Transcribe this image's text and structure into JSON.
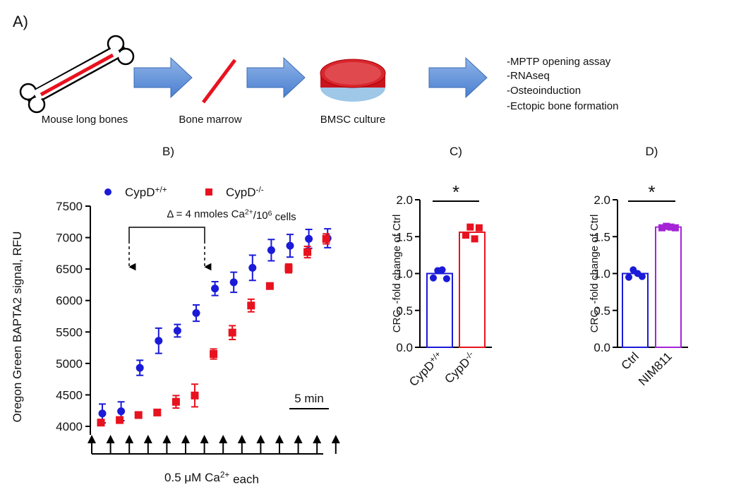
{
  "panel_a": {
    "label": "A)",
    "steps": [
      "Mouse long bones",
      "Bone marrow",
      "BMSC culture"
    ],
    "outcomes": [
      "-MPTP opening assay",
      "-RNAseq",
      "-Osteoinduction",
      "-Ectopic bone formation"
    ]
  },
  "chart_data": [
    {
      "type": "scatter",
      "title": "B)",
      "y_label": "Oregon Green BAPTA2 signal, RFU",
      "categories": [
        null,
        null,
        null,
        null,
        null,
        null,
        null,
        null,
        null,
        null,
        null,
        null,
        null
      ],
      "series": [
        {
          "name": [
            "CypD",
            {
              "sup": "+/+"
            }
          ],
          "color": "#1a1ad8",
          "marker": "circle",
          "values": [
            4205,
            4240,
            4930,
            5360,
            5520,
            5800,
            6190,
            6290,
            6520,
            6800,
            6870,
            6980,
            6990
          ],
          "errors": [
            150,
            150,
            120,
            200,
            100,
            130,
            110,
            160,
            200,
            170,
            180,
            150,
            150
          ]
        },
        {
          "name": [
            "CypD",
            {
              "sup": "-/-"
            }
          ],
          "color": "#e8121f",
          "marker": "square",
          "values": [
            4060,
            4100,
            4180,
            4220,
            4390,
            4490,
            5150,
            5490,
            5920,
            6230,
            6510,
            6770,
            6980
          ],
          "errors": [
            40,
            50,
            30,
            30,
            100,
            180,
            80,
            110,
            100,
            30,
            70,
            90,
            80
          ]
        }
      ],
      "ylim": [
        4000,
        7500
      ],
      "yticks": [
        4000,
        4500,
        5000,
        5500,
        6000,
        6500,
        7000,
        7500
      ],
      "annotation": [
        "Δ = 4 nmoles Ca",
        {
          "sup": "2+"
        },
        "/10",
        {
          "sup": "6"
        },
        " cells"
      ],
      "scale_bar": "5 min",
      "x_label": [
        "0.5 μM Ca",
        {
          "sup": "2+"
        },
        " each"
      ]
    },
    {
      "type": "bar",
      "title": "C)",
      "y_label": "CRC, -fold change of Ctrl",
      "categories": [
        [
          "CypD",
          {
            "sup": "+/+"
          }
        ],
        [
          "CypD",
          {
            "sup": "-/-"
          }
        ]
      ],
      "values": [
        1.0,
        1.56
      ],
      "colors": [
        "#1a1ad8",
        "#e8121f"
      ],
      "markers": [
        "circle",
        "square"
      ],
      "points": [
        [
          0.94,
          1.04,
          1.05,
          0.93
        ],
        [
          1.52,
          1.63,
          1.47,
          1.62
        ]
      ],
      "significance": "*",
      "ylim": [
        0,
        2
      ],
      "yticks": [
        {
          "value": 0,
          "label": "0.0"
        },
        {
          "value": 0.5,
          "label": "0.5"
        },
        {
          "value": 1,
          "label": "1.0"
        },
        {
          "value": 1.5,
          "label": "1.5"
        },
        {
          "value": 2,
          "label": "2.0"
        }
      ]
    },
    {
      "type": "bar",
      "title": "D)",
      "y_label": "CRC, -fold change of Ctrl",
      "categories": [
        "Ctrl",
        "NIM811"
      ],
      "values": [
        1.0,
        1.63
      ],
      "colors": [
        "#1a1ad8",
        "#a524d6"
      ],
      "markers": [
        "circle",
        "square"
      ],
      "points": [
        [
          0.95,
          1.05,
          1.0,
          0.96
        ],
        [
          1.62,
          1.64,
          1.63,
          1.62
        ]
      ],
      "significance": "*",
      "ylim": [
        0,
        2
      ],
      "yticks": [
        {
          "value": 0,
          "label": "0.0"
        },
        {
          "value": 0.5,
          "label": "0.5"
        },
        {
          "value": 1,
          "label": "1.0"
        },
        {
          "value": 1.5,
          "label": "1.5"
        },
        {
          "value": 2,
          "label": "2.0"
        }
      ]
    }
  ]
}
